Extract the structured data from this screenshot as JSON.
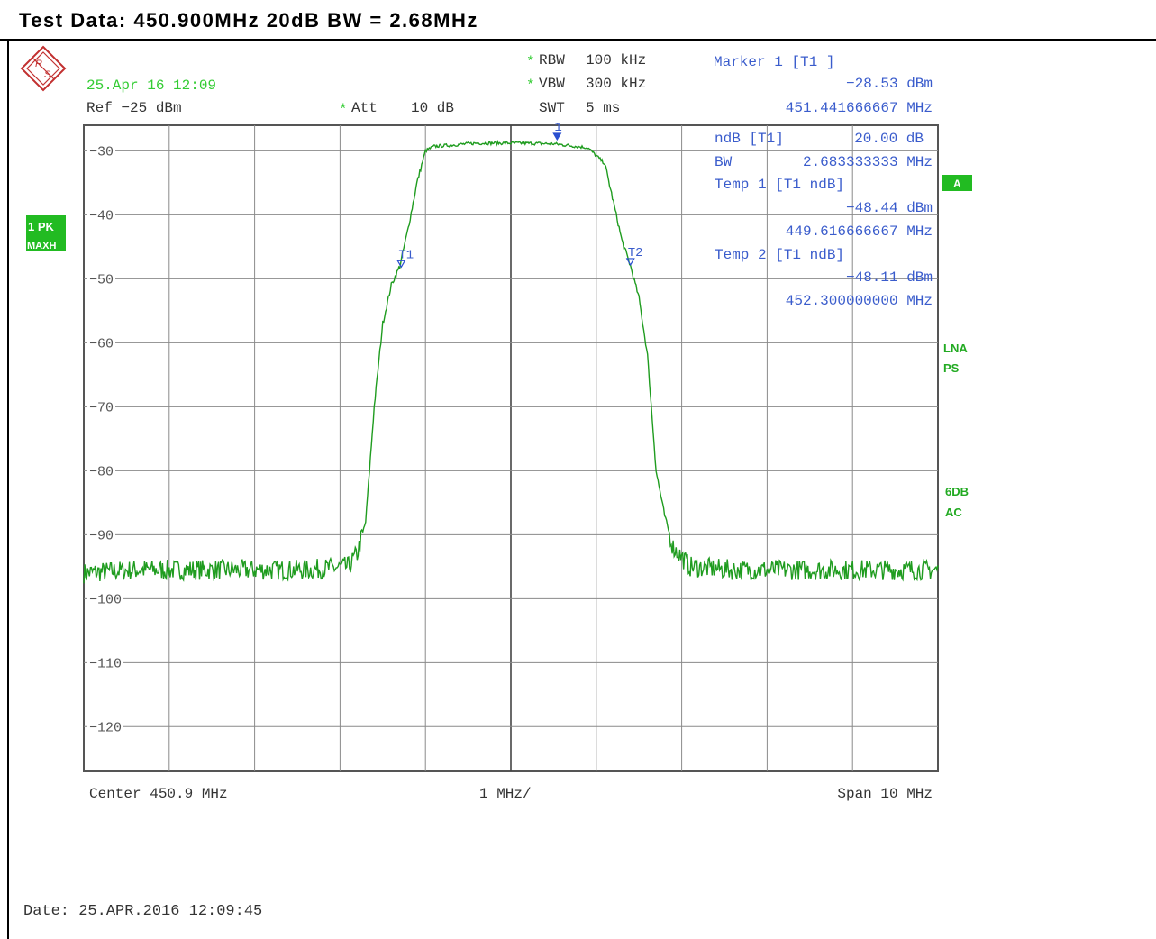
{
  "header": {
    "title": "Test Data: 450.900MHz 20dB BW = 2.68MHz"
  },
  "instrument": {
    "timestamp": "25.Apr 16 12:09",
    "ref_level": "Ref −25 dBm",
    "att_star": "*",
    "att_label": "Att",
    "att_value": "10 dB",
    "rbw_star": "*",
    "rbw_label": "RBW",
    "rbw_value": "100 kHz",
    "vbw_star": "*",
    "vbw_label": "VBW",
    "vbw_value": "300 kHz",
    "swt_label": "SWT",
    "swt_value": "5 ms",
    "trace_label_line1": "1 PK",
    "trace_label_line2": "MAXH",
    "side_a": "A",
    "side_lna_line1": "LNA",
    "side_lna_line2": "PS",
    "side_6db_line1": "6DB",
    "side_6db_line2": "AC"
  },
  "markers": {
    "marker1_title": "Marker 1 [T1 ]",
    "marker1_level": "−28.53 dBm",
    "marker1_freq": "451.441666667 MHz",
    "ndb_label": "ndB [T1]",
    "ndb_value": "20.00 dB",
    "bw_label": "BW",
    "bw_value": "2.683333333 MHz",
    "temp1_title": "Temp 1 [T1 ndB]",
    "temp1_level": "−48.44 dBm",
    "temp1_freq": "449.616666667 MHz",
    "temp2_title": "Temp 2 [T1 ndB]",
    "temp2_level": "−48.11 dBm",
    "temp2_freq": "452.300000000 MHz",
    "m1_tag": "1",
    "t1_tag": "T1",
    "t2_tag": "T2"
  },
  "footer": {
    "center": "Center 450.9 MHz",
    "per_div": "1 MHz/",
    "span": "Span 10 MHz",
    "date": "Date: 25.APR.2016 12:09:45"
  },
  "colors": {
    "trace": "#1f9c1f",
    "marker_text": "#3a5ccc",
    "timestamp": "#33cc33",
    "grid": "#808080",
    "badge_bg": "#22bb22"
  },
  "chart_data": {
    "type": "line",
    "xlabel": "",
    "ylabel": "",
    "xlim": [
      445.9,
      455.9
    ],
    "ylim": [
      -125,
      -25
    ],
    "y_ticks": [
      "−30",
      "−40",
      "−50",
      "−60",
      "−70",
      "−80",
      "−90",
      "−100",
      "−110",
      "−120"
    ],
    "y_tick_values": [
      -30,
      -40,
      -50,
      -60,
      -70,
      -80,
      -90,
      -100,
      -110,
      -120
    ],
    "grid": true,
    "series": [
      {
        "x": [
          445.9,
          446.5,
          447.0,
          447.5,
          448.0,
          448.5,
          449.0,
          449.1,
          449.2,
          449.3,
          449.4,
          449.5,
          449.6,
          449.7,
          449.8,
          449.9,
          450.0,
          450.5,
          451.0,
          451.4,
          451.8,
          452.0,
          452.1,
          452.2,
          452.3,
          452.4,
          452.5,
          452.6,
          452.7,
          452.8,
          452.9,
          453.0,
          453.5,
          454.0,
          454.5,
          455.0,
          455.5,
          455.9
        ],
        "y": [
          -96,
          -95.5,
          -95.5,
          -95.5,
          -95.5,
          -95.5,
          -95,
          -93,
          -88,
          -70,
          -57,
          -51,
          -48,
          -42,
          -35,
          -30,
          -29.3,
          -28.8,
          -28.8,
          -28.9,
          -29.5,
          -32,
          -38,
          -44,
          -48,
          -53,
          -62,
          -80,
          -87,
          -92,
          -93.5,
          -95,
          -95.5,
          -95.5,
          -95.5,
          -95.5,
          -95.5,
          -95.5
        ]
      }
    ],
    "markers": [
      {
        "name": "1",
        "x": 451.441666667,
        "y": -28.53
      },
      {
        "name": "T1",
        "x": 449.616666667,
        "y": -48.44
      },
      {
        "name": "T2",
        "x": 452.3,
        "y": -48.11
      }
    ]
  }
}
